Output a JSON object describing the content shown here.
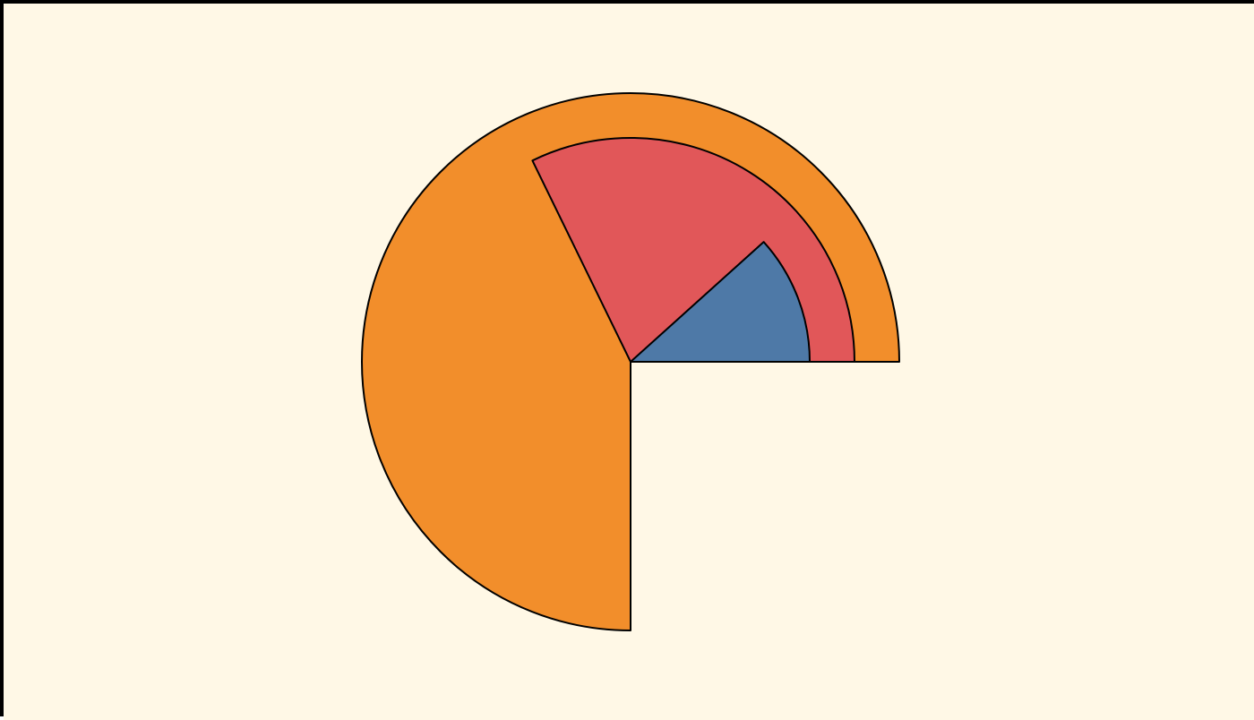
{
  "chart_data": {
    "type": "radial-bar",
    "unit": "degrees",
    "start_angle": 0,
    "direction": "counterclockwise",
    "series": [
      {
        "value": 270,
        "radius_ratio": 1.0
      },
      {
        "value": 116,
        "radius_ratio": 0.8333
      },
      {
        "value": 42,
        "radius_ratio": 0.6667
      }
    ],
    "background": "#FFF8E6",
    "frame_color": "#000000",
    "stroke_color": "#000000",
    "colors": [
      "#F28E2B",
      "#E15759",
      "#4E79A7"
    ],
    "legend": "none",
    "grid": false
  }
}
